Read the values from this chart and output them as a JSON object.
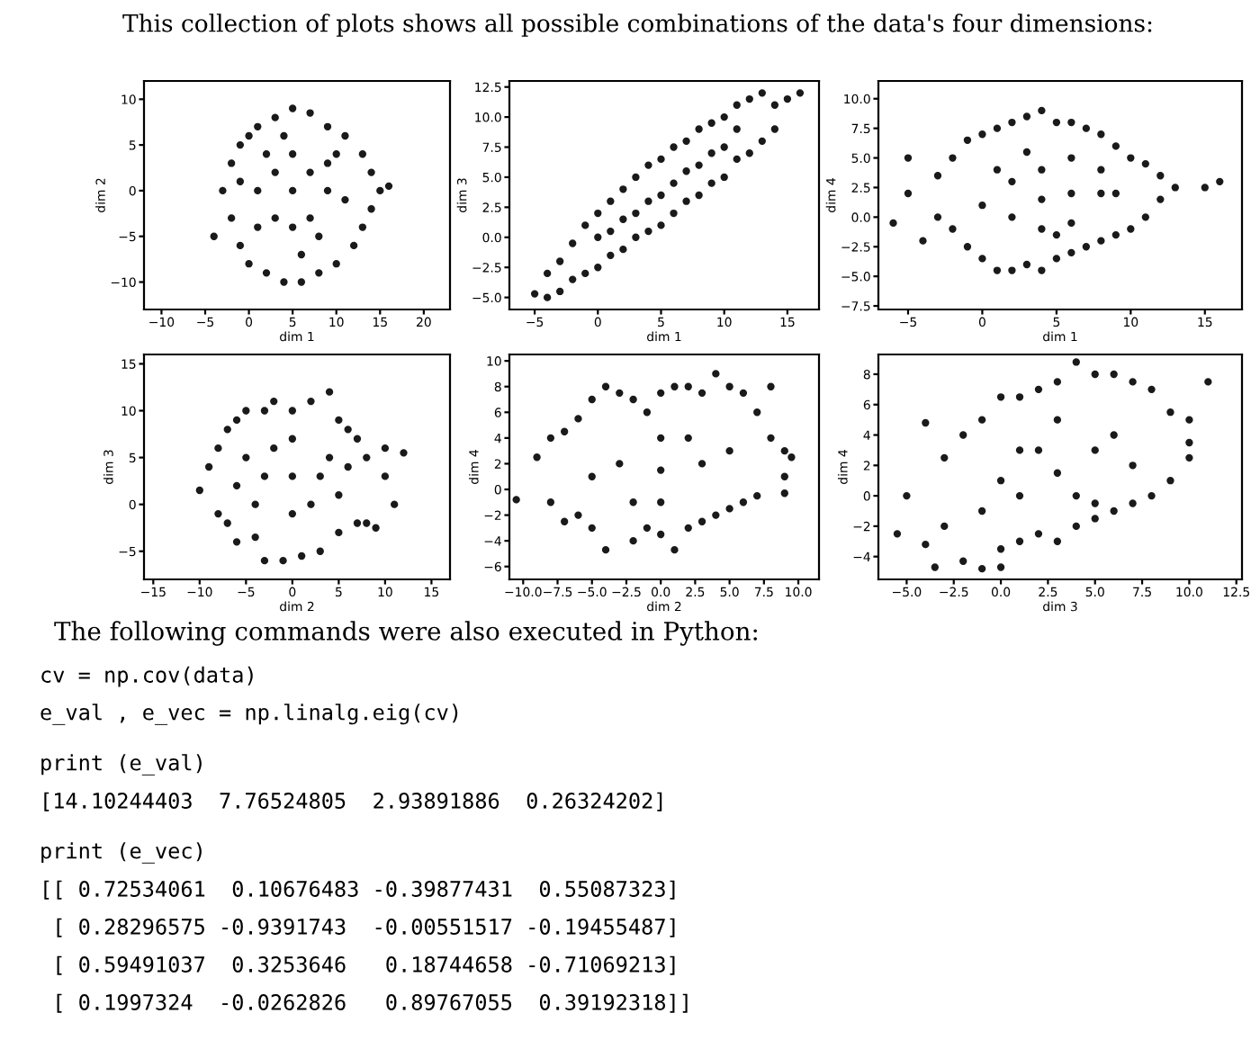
{
  "chart_data": [
    {
      "type": "scatter",
      "xlabel": "dim 1",
      "ylabel": "dim 2",
      "marker": "circle",
      "grid": false,
      "annotations": [
        "This collection of plots shows all possible combinations of the data's four dimensions:"
      ],
      "xlim": [
        -12,
        23
      ],
      "ylim": [
        -13,
        12
      ],
      "xticks": [
        {
          "value": -10,
          "label": "−10"
        },
        {
          "value": -5,
          "label": "−5"
        },
        0,
        5,
        10,
        15,
        20
      ],
      "yticks": [
        {
          "value": -10,
          "label": "−10"
        },
        {
          "value": -5,
          "label": "−5"
        },
        0,
        5,
        10
      ],
      "series": [
        {
          "color": "#1a1a1a",
          "x": [
            -4,
            -3,
            -2,
            -2,
            -1,
            -1,
            0,
            0,
            1,
            2,
            3,
            4,
            5,
            6,
            7,
            8,
            9,
            10,
            11,
            12,
            13,
            13,
            14,
            15,
            16,
            14,
            1,
            3,
            3,
            5,
            5,
            5,
            7,
            7,
            9,
            9,
            1,
            2,
            8,
            10,
            11,
            -1,
            4,
            6
          ],
          "values": [
            -5,
            0,
            3,
            -3,
            5,
            -6,
            6,
            -8,
            7,
            -9,
            8,
            -10,
            9,
            -10,
            8.5,
            -9,
            7,
            -8,
            6,
            -6,
            4,
            -4,
            2,
            0,
            0.5,
            -2,
            0,
            2,
            -3,
            0,
            4,
            -4,
            2,
            -3,
            0,
            3,
            -4,
            4,
            -5,
            4,
            -1,
            1,
            6,
            -7
          ]
        }
      ]
    },
    {
      "type": "scatter",
      "xlabel": "dim 1",
      "ylabel": "dim 3",
      "marker": "circle",
      "grid": false,
      "xlim": [
        -7,
        17.5
      ],
      "ylim": [
        -6,
        13
      ],
      "xticks": [
        {
          "value": -5,
          "label": "−5"
        },
        0,
        5,
        10,
        15
      ],
      "yticks": [
        {
          "value": -5.0,
          "label": "−5.0"
        },
        {
          "value": -2.5,
          "label": "−2.5"
        },
        {
          "value": 0,
          "label": "0.0"
        },
        2.5,
        {
          "value": 5,
          "label": "5.0"
        },
        7.5,
        {
          "value": 10,
          "label": "10.0"
        },
        12.5
      ],
      "series": [
        {
          "color": "#1a1a1a",
          "x": [
            -5,
            -4,
            -4,
            -3,
            -3,
            -2,
            -2,
            -1,
            -1,
            0,
            0,
            1,
            1,
            2,
            2,
            3,
            3,
            4,
            4,
            5,
            5,
            6,
            6,
            7,
            7,
            8,
            8,
            9,
            9,
            10,
            10,
            11,
            11,
            12,
            12,
            13,
            13,
            14,
            14,
            16,
            15,
            0,
            2,
            4,
            6,
            8,
            10,
            3,
            5,
            7,
            9,
            1,
            11
          ],
          "values": [
            -4.7,
            -5,
            -3,
            -4.5,
            -2,
            -3.5,
            -0.5,
            -3,
            1,
            -2.5,
            2,
            -1.5,
            3,
            -1,
            4,
            0,
            5,
            0.5,
            6,
            1,
            6.5,
            2,
            7.5,
            3,
            8,
            3.5,
            9,
            4.5,
            9.5,
            5,
            10,
            6.5,
            11,
            7,
            11.5,
            8,
            12,
            9,
            11,
            12,
            11.5,
            0,
            1.5,
            3,
            4.5,
            6,
            7.5,
            2,
            3.5,
            5.5,
            7,
            0.5,
            9
          ]
        }
      ]
    },
    {
      "type": "scatter",
      "xlabel": "dim 1",
      "ylabel": "dim 4",
      "marker": "circle",
      "grid": false,
      "xlim": [
        -7,
        17.5
      ],
      "ylim": [
        -7.8,
        11.5
      ],
      "xticks": [
        {
          "value": -5,
          "label": "−5"
        },
        0,
        5,
        10,
        15
      ],
      "yticks": [
        {
          "value": -7.5,
          "label": "−7.5"
        },
        {
          "value": -5.0,
          "label": "−5.0"
        },
        {
          "value": -2.5,
          "label": "−2.5"
        },
        {
          "value": 0,
          "label": "0.0"
        },
        2.5,
        {
          "value": 5,
          "label": "5.0"
        },
        7.5,
        {
          "value": 10,
          "label": "10.0"
        }
      ],
      "series": [
        {
          "color": "#1a1a1a",
          "x": [
            -6,
            -5,
            -5,
            -4,
            -3,
            -3,
            -2,
            -2,
            -1,
            -1,
            0,
            0,
            1,
            1,
            2,
            2,
            3,
            3,
            4,
            4,
            5,
            5,
            6,
            6,
            7,
            7,
            8,
            8,
            9,
            9,
            10,
            10,
            11,
            11,
            12,
            12,
            13,
            15,
            16,
            0,
            2,
            2,
            4,
            4,
            4,
            6,
            6,
            6,
            8,
            8,
            1,
            3,
            5,
            9
          ],
          "values": [
            -0.5,
            5,
            2,
            -2,
            3.5,
            0,
            5,
            -1,
            6.5,
            -2.5,
            7,
            -3.5,
            7.5,
            -4.5,
            8,
            -4.5,
            8.5,
            -4,
            9,
            -4.5,
            8,
            -3.5,
            8,
            -3,
            7.5,
            -2.5,
            7,
            -2,
            6,
            -1.5,
            5,
            -1,
            4.5,
            0,
            3.5,
            1.5,
            2.5,
            2.5,
            3,
            1,
            3,
            0,
            1.5,
            4,
            -1,
            2,
            5,
            -0.5,
            2,
            4,
            4,
            5.5,
            -1.5,
            2
          ]
        }
      ]
    },
    {
      "type": "scatter",
      "xlabel": "dim 2",
      "ylabel": "dim 3",
      "marker": "circle",
      "grid": false,
      "xlim": [
        -16,
        17
      ],
      "ylim": [
        -8,
        16
      ],
      "xticks": [
        {
          "value": -15,
          "label": "−15"
        },
        {
          "value": -10,
          "label": "−10"
        },
        {
          "value": -5,
          "label": "−5"
        },
        0,
        5,
        10,
        15
      ],
      "yticks": [
        {
          "value": -5,
          "label": "−5"
        },
        0,
        5,
        10,
        15
      ],
      "series": [
        {
          "color": "#1a1a1a",
          "x": [
            -10,
            -9,
            -8,
            -8,
            -7,
            -7,
            -6,
            -6,
            -5,
            -4,
            -3,
            -3,
            -2,
            -1,
            0,
            1,
            2,
            3,
            4,
            5,
            5,
            6,
            7,
            7,
            8,
            8,
            9,
            10,
            10,
            11,
            12,
            0,
            -3,
            3,
            0,
            0,
            -5,
            5,
            -4,
            4,
            -2,
            2,
            -6,
            6
          ],
          "values": [
            1.5,
            4,
            -1,
            6,
            8,
            -2,
            9,
            -4,
            10,
            -3.5,
            10,
            -6,
            11,
            -6,
            10,
            -5.5,
            11,
            -5,
            12,
            -3,
            9,
            8,
            -2,
            7,
            5,
            -2,
            -2.5,
            3,
            6,
            0,
            5.5,
            3,
            3,
            3,
            7,
            -1,
            5,
            1,
            0,
            5,
            6,
            0,
            2,
            4
          ]
        }
      ]
    },
    {
      "type": "scatter",
      "xlabel": "dim 2",
      "ylabel": "dim 4",
      "marker": "circle",
      "grid": false,
      "xlim": [
        -11,
        11.5
      ],
      "ylim": [
        -7,
        10.5
      ],
      "xticks": [
        {
          "value": -10.0,
          "label": "−10.0"
        },
        {
          "value": -7.5,
          "label": "−7.5"
        },
        {
          "value": -5.0,
          "label": "−5.0"
        },
        {
          "value": -2.5,
          "label": "−2.5"
        },
        {
          "value": 0,
          "label": "0.0"
        },
        2.5,
        {
          "value": 5,
          "label": "5.0"
        },
        7.5,
        {
          "value": 10,
          "label": "10.0"
        }
      ],
      "yticks": [
        {
          "value": -6,
          "label": "−6"
        },
        {
          "value": -4,
          "label": "−4"
        },
        {
          "value": -2,
          "label": "−2"
        },
        0,
        2,
        4,
        6,
        8,
        10
      ],
      "series": [
        {
          "color": "#1a1a1a",
          "x": [
            -10.5,
            -9,
            -8,
            -8,
            -7,
            -7,
            -6,
            -6,
            -5,
            -5,
            -4,
            -4,
            -3,
            -2,
            -2,
            -1,
            -1,
            0,
            0,
            1,
            1,
            2,
            2,
            3,
            3,
            4,
            4,
            5,
            5,
            6,
            6,
            7,
            7,
            8,
            8,
            9,
            9,
            9.5,
            9,
            0,
            -3,
            3,
            0,
            0,
            -5,
            5,
            -2,
            2
          ],
          "values": [
            -0.8,
            2.5,
            4,
            -1,
            4.5,
            -2.5,
            5.5,
            -2,
            7,
            -3,
            8,
            -4.7,
            7.5,
            7,
            -4,
            6,
            -3,
            7.5,
            -3.5,
            8,
            -4.7,
            8,
            -3,
            7.5,
            -2.5,
            9,
            -2,
            8,
            -1.5,
            7.5,
            -1,
            6,
            -0.5,
            8,
            4,
            3,
            1,
            2.5,
            -0.3,
            1.5,
            2,
            2,
            4,
            -1,
            1,
            3,
            -1,
            4
          ]
        }
      ]
    },
    {
      "type": "scatter",
      "xlabel": "dim 3",
      "ylabel": "dim 4",
      "marker": "circle",
      "grid": false,
      "annotations": [
        "The following commands were also executed in Python:",
        "cv = np.cov(data)",
        "e_val , e_vec = np.linalg.eig(cv)",
        "print (e_val)",
        "[14.10244403  7.76524805  2.93891886  0.26324202]",
        "print (e_vec)",
        "[[ 0.72534061  0.10676483 -0.39877431  0.55087323]",
        " [ 0.28296575 -0.9391743  -0.00551517 -0.19455487]",
        " [ 0.59491037  0.3253646   0.18744658 -0.71069213]",
        " [ 0.1997324  -0.0262826   0.89767055  0.39192318]]"
      ],
      "xlim": [
        -6.5,
        12.8
      ],
      "ylim": [
        -5.5,
        9.3
      ],
      "xticks": [
        {
          "value": -5.0,
          "label": "−5.0"
        },
        {
          "value": -2.5,
          "label": "−2.5"
        },
        {
          "value": 0,
          "label": "0.0"
        },
        2.5,
        {
          "value": 5,
          "label": "5.0"
        },
        7.5,
        {
          "value": 10,
          "label": "10.0"
        },
        12.5
      ],
      "yticks": [
        {
          "value": -4,
          "label": "−4"
        },
        {
          "value": -2,
          "label": "−2"
        },
        0,
        2,
        4,
        6,
        8
      ],
      "series": [
        {
          "color": "#1a1a1a",
          "x": [
            -5.5,
            -5,
            -4,
            -4,
            -3.5,
            -3,
            -3,
            -2,
            -2,
            -1,
            -1,
            0,
            0,
            0,
            1,
            1,
            2,
            2,
            3,
            3,
            4,
            4,
            5,
            5,
            6,
            6,
            7,
            7,
            8,
            8,
            9,
            9,
            10,
            10,
            11,
            10,
            3,
            1,
            5,
            2,
            4,
            0,
            6,
            -1,
            7,
            3,
            1,
            5
          ],
          "values": [
            -2.5,
            0,
            -3.2,
            4.8,
            -4.7,
            2.5,
            -2,
            -4.3,
            4,
            5,
            -4.8,
            6.5,
            -3.5,
            -4.7,
            6.5,
            -3,
            7,
            -2.5,
            7.5,
            -3,
            8.8,
            -2,
            8,
            -1.5,
            8,
            -1,
            7.5,
            -0.5,
            7,
            0,
            5.5,
            1,
            5,
            3.5,
            7.5,
            2.5,
            1.5,
            0,
            3,
            3,
            0,
            1,
            4,
            -1,
            2,
            5,
            3,
            -0.5
          ]
        }
      ]
    }
  ]
}
